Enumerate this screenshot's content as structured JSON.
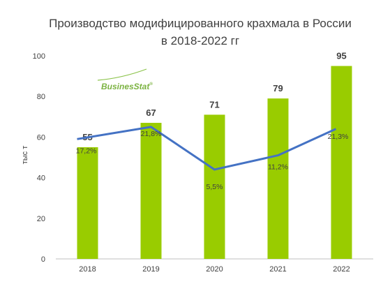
{
  "chart_data": {
    "type": "bar",
    "title_line1": "Производство модифицированного крахмала в России",
    "title_line2": "в 2018-2022 гг",
    "ylabel": "тыс т",
    "categories": [
      "2018",
      "2019",
      "2020",
      "2021",
      "2022"
    ],
    "values": [
      55,
      67,
      71,
      79,
      95
    ],
    "value_labels": [
      "55",
      "67",
      "71",
      "79",
      "95"
    ],
    "ylim": [
      0,
      100
    ],
    "yticks": [
      0,
      20,
      40,
      60,
      80,
      100
    ],
    "ytick_labels": [
      "0",
      "20",
      "40",
      "60",
      "80",
      "100"
    ],
    "growth_series": {
      "values": [
        17.2,
        21.8,
        5.5,
        11.2,
        21.3
      ],
      "labels": [
        "17,2%",
        "21,8%",
        "5,5%",
        "11,2%",
        "21,3%"
      ],
      "plot_levels": [
        59,
        65,
        44,
        51,
        64
      ]
    },
    "legend": "none",
    "grid": false,
    "colors": {
      "bar": "#99cc00",
      "line": "#4472c4",
      "axis": "#bfbfbf",
      "text": "#404040"
    }
  },
  "logo": {
    "text": "BusinesStat",
    "mark": "®"
  }
}
